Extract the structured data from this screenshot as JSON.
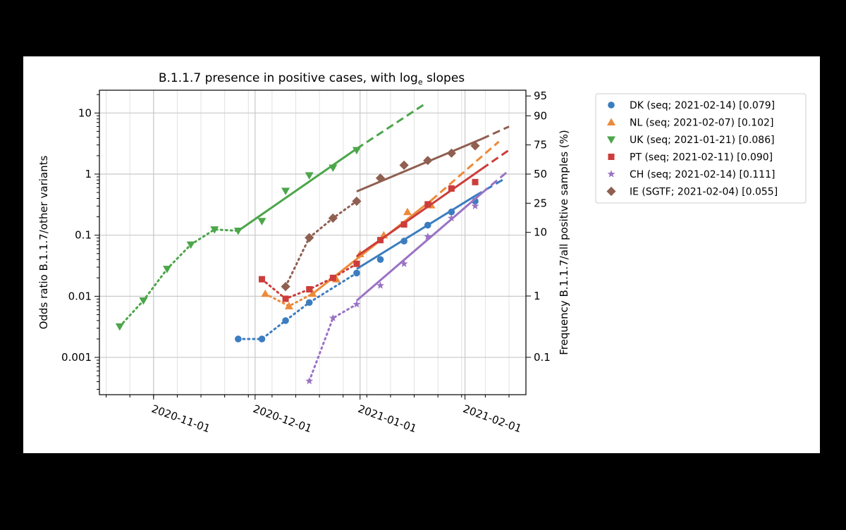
{
  "chart_data": {
    "type": "line",
    "title_prefix": "B.1.1.7 presence in positive cases, with log",
    "title_sub": "e",
    "title_suffix": " slopes",
    "ylabel": "Odds ratio B.1.1.7/other variants",
    "ylabel_right": "Frequency B.1.1.7/all positive samples (%)",
    "yscale": "log",
    "ylim": [
      0.000245,
      23.6
    ],
    "xlim": [
      "2020-10-16",
      "2021-02-19"
    ],
    "x_ticks": [
      "2020-11-01",
      "2020-12-01",
      "2021-01-01",
      "2021-02-01"
    ],
    "y_ticks": [
      {
        "value": 0.001,
        "label": "0.001"
      },
      {
        "value": 0.01,
        "label": "0.01"
      },
      {
        "value": 0.1,
        "label": "0.1"
      },
      {
        "value": 1,
        "label": "1"
      },
      {
        "value": 10,
        "label": "10"
      }
    ],
    "y_ticks_right_percent": [
      "0.1",
      "1",
      "10",
      "25",
      "50",
      "75",
      "90",
      "95"
    ],
    "grid": true,
    "legend_placement": "outside-right",
    "series": [
      {
        "name": "DK (seq; 2021-02-14) [0.079]",
        "color": "#3b7dbf",
        "marker": "circle",
        "points": [
          [
            "2020-11-26",
            0.002
          ],
          [
            "2020-12-03",
            0.002
          ],
          [
            "2020-12-10",
            0.004
          ],
          [
            "2020-12-17",
            0.0079
          ],
          [
            "2020-12-31",
            0.024
          ],
          [
            "2021-01-07",
            0.04
          ],
          [
            "2021-01-14",
            0.08
          ],
          [
            "2021-01-21",
            0.146
          ],
          [
            "2021-01-28",
            0.24
          ],
          [
            "2021-02-04",
            0.36
          ]
        ],
        "fit": {
          "start": [
            "2020-12-31",
            0.028
          ],
          "end": [
            "2021-02-04",
            0.44
          ],
          "extrapolate": [
            "2021-02-13",
            0.86
          ]
        }
      },
      {
        "name": "NL (seq; 2021-02-07) [0.102]",
        "color": "#ec8a3a",
        "marker": "triangle-up",
        "points": [
          [
            "2020-12-04",
            0.011
          ],
          [
            "2020-12-11",
            0.0069
          ],
          [
            "2020-12-18",
            0.011
          ],
          [
            "2020-12-25",
            0.019
          ],
          [
            "2021-01-01",
            0.049
          ],
          [
            "2021-01-08",
            0.1
          ],
          [
            "2021-01-15",
            0.24
          ],
          [
            "2021-01-22",
            0.31
          ]
        ],
        "fit": {
          "start": [
            "2020-12-18",
            0.011
          ],
          "end": [
            "2021-01-22",
            0.37
          ],
          "extrapolate": [
            "2021-02-11",
            3.4
          ]
        }
      },
      {
        "name": "UK (seq; 2021-01-21) [0.086]",
        "color": "#4ca64a",
        "marker": "triangle-down",
        "points": [
          [
            "2020-10-22",
            0.0032
          ],
          [
            "2020-10-29",
            0.0085
          ],
          [
            "2020-11-05",
            0.028
          ],
          [
            "2020-11-12",
            0.07
          ],
          [
            "2020-11-19",
            0.124
          ],
          [
            "2020-11-26",
            0.118
          ],
          [
            "2020-12-03",
            0.17
          ],
          [
            "2020-12-10",
            0.53
          ],
          [
            "2020-12-17",
            0.95
          ],
          [
            "2020-12-24",
            1.27
          ],
          [
            "2020-12-31",
            2.46
          ]
        ],
        "fit": {
          "start": [
            "2020-11-26",
            0.118
          ],
          "end": [
            "2020-12-31",
            2.6
          ],
          "extrapolate": [
            "2021-01-20",
            13.9
          ]
        }
      },
      {
        "name": "PT (seq; 2021-02-11) [0.090]",
        "color": "#cc3d3b",
        "marker": "square",
        "points": [
          [
            "2020-12-03",
            0.019
          ],
          [
            "2020-12-10",
            0.0091
          ],
          [
            "2020-12-17",
            0.013
          ],
          [
            "2020-12-24",
            0.02
          ],
          [
            "2020-12-31",
            0.034
          ],
          [
            "2021-01-07",
            0.083
          ],
          [
            "2021-01-14",
            0.15
          ],
          [
            "2021-01-21",
            0.32
          ],
          [
            "2021-01-28",
            0.58
          ],
          [
            "2021-02-04",
            0.74
          ]
        ],
        "fit": {
          "start": [
            "2020-12-31",
            0.045
          ],
          "end": [
            "2021-02-06",
            1.22
          ],
          "extrapolate": [
            "2021-02-14",
            2.48
          ]
        }
      },
      {
        "name": "CH (seq; 2021-02-14) [0.111]",
        "color": "#9a72c4",
        "marker": "star",
        "points": [
          [
            "2020-12-17",
            0.00041
          ],
          [
            "2020-12-24",
            0.0044
          ],
          [
            "2020-12-31",
            0.0074
          ],
          [
            "2021-01-07",
            0.015
          ],
          [
            "2021-01-14",
            0.034
          ],
          [
            "2021-01-21",
            0.095
          ],
          [
            "2021-01-28",
            0.19
          ],
          [
            "2021-02-04",
            0.3
          ]
        ],
        "fit": {
          "start": [
            "2020-12-31",
            0.0085
          ],
          "end": [
            "2021-02-06",
            0.49
          ],
          "extrapolate": [
            "2021-02-14",
            1.15
          ]
        }
      },
      {
        "name": "IE (SGTF; 2021-02-04) [0.055]",
        "color": "#8f5f50",
        "marker": "diamond",
        "points": [
          [
            "2020-12-10",
            0.0144
          ],
          [
            "2020-12-17",
            0.091
          ],
          [
            "2020-12-24",
            0.19
          ],
          [
            "2020-12-31",
            0.36
          ],
          [
            "2021-01-07",
            0.86
          ],
          [
            "2021-01-14",
            1.4
          ],
          [
            "2021-01-21",
            1.67
          ],
          [
            "2021-01-28",
            2.2
          ],
          [
            "2021-02-04",
            2.9
          ]
        ],
        "fit": {
          "start": [
            "2020-12-31",
            0.52
          ],
          "end": [
            "2021-02-06",
            3.77
          ],
          "extrapolate": [
            "2021-02-14",
            6.0
          ]
        }
      }
    ]
  }
}
